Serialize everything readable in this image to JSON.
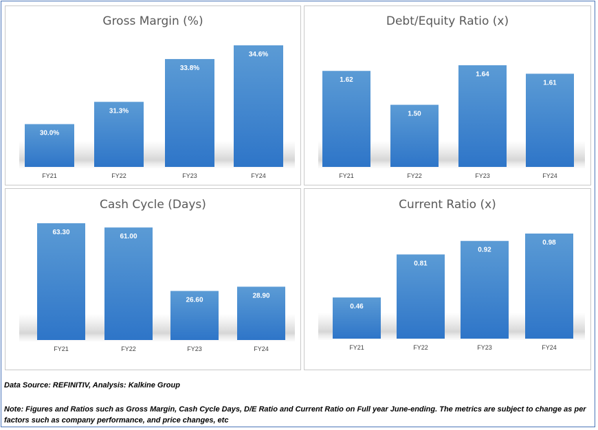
{
  "colors": {
    "bar_top": "#5b9bd5",
    "bar_bottom": "#2e75c8",
    "label": "#ffffff",
    "axis_text": "#404040"
  },
  "chart_data": [
    {
      "type": "bar",
      "title": "Gross Margin (%)",
      "categories": [
        "FY21",
        "FY22",
        "FY23",
        "FY24"
      ],
      "values": [
        30.0,
        31.3,
        33.8,
        34.6
      ],
      "labels": [
        "30.0%",
        "31.3%",
        "33.8%",
        "34.6%"
      ]
    },
    {
      "type": "bar",
      "title": "Debt/Equity Ratio (x)",
      "categories": [
        "FY21",
        "FY22",
        "FY23",
        "FY24"
      ],
      "values": [
        1.62,
        1.5,
        1.64,
        1.61
      ],
      "labels": [
        "1.62",
        "1.50",
        "1.64",
        "1.61"
      ]
    },
    {
      "type": "bar",
      "title": "Cash Cycle (Days)",
      "categories": [
        "FY21",
        "FY22",
        "FY23",
        "FY24"
      ],
      "values": [
        63.3,
        61.0,
        26.6,
        28.9
      ],
      "labels": [
        "63.30",
        "61.00",
        "26.60",
        "28.90"
      ]
    },
    {
      "type": "bar",
      "title": "Current Ratio (x)",
      "categories": [
        "FY21",
        "FY22",
        "FY23",
        "FY24"
      ],
      "values": [
        0.46,
        0.81,
        0.92,
        0.98
      ],
      "labels": [
        "0.46",
        "0.81",
        "0.92",
        "0.98"
      ]
    }
  ],
  "footer": {
    "source": "Data Source: REFINITIV, Analysis: Kalkine Group",
    "note": "Note: Figures and Ratios such as Gross Margin, Cash Cycle Days, D/E Ratio and Current Ratio on Full  year June-ending. The metrics are subject to change as per factors such as company performance, and price changes, etc"
  }
}
